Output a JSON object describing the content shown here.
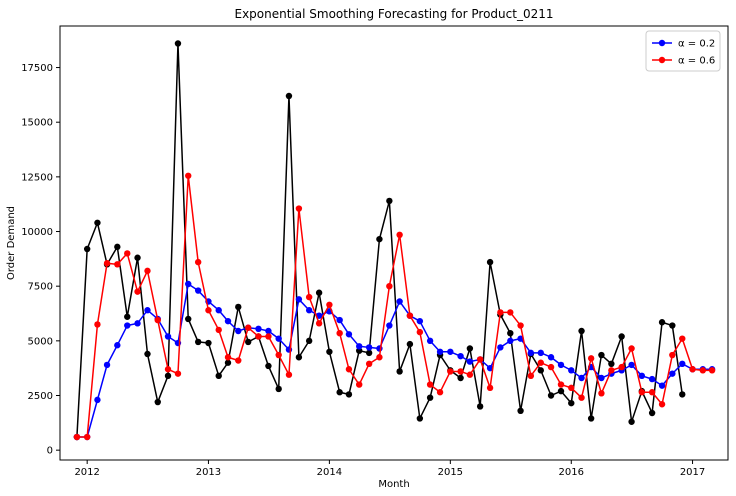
{
  "chart_data": {
    "type": "line",
    "title": "Exponential Smoothing Forecasting for Product_0211",
    "xlabel": "Month",
    "ylabel": "Order Demand",
    "xlim": [
      "2011-10-11",
      "2017-04-18"
    ],
    "ylim": [
      -450,
      19400
    ],
    "x_ticks": [
      {
        "date": "2012-01-01",
        "label": "2012"
      },
      {
        "date": "2013-01-01",
        "label": "2013"
      },
      {
        "date": "2014-01-01",
        "label": "2014"
      },
      {
        "date": "2015-01-01",
        "label": "2015"
      },
      {
        "date": "2016-01-01",
        "label": "2016"
      },
      {
        "date": "2017-01-01",
        "label": "2017"
      }
    ],
    "y_ticks": [
      {
        "value": 0,
        "label": "0"
      },
      {
        "value": 2500,
        "label": "2500"
      },
      {
        "value": 5000,
        "label": "5000"
      },
      {
        "value": 7500,
        "label": "7500"
      },
      {
        "value": 10000,
        "label": "10000"
      },
      {
        "value": 12500,
        "label": "12500"
      },
      {
        "value": 15000,
        "label": "15000"
      },
      {
        "value": 17500,
        "label": "17500"
      }
    ],
    "grid": false,
    "legend_position": "top-right",
    "series": [
      {
        "name": "",
        "color": "#000000",
        "in_legend": false,
        "x": [
          "2011-12-01",
          "2012-01-01",
          "2012-02-01",
          "2012-03-01",
          "2012-04-01",
          "2012-05-01",
          "2012-06-01",
          "2012-07-01",
          "2012-08-01",
          "2012-09-01",
          "2012-10-01",
          "2012-11-01",
          "2012-12-01",
          "2013-01-01",
          "2013-02-01",
          "2013-03-01",
          "2013-04-01",
          "2013-05-01",
          "2013-06-01",
          "2013-07-01",
          "2013-08-01",
          "2013-09-01",
          "2013-10-01",
          "2013-11-01",
          "2013-12-01",
          "2014-01-01",
          "2014-02-01",
          "2014-03-01",
          "2014-04-01",
          "2014-05-01",
          "2014-06-01",
          "2014-07-01",
          "2014-08-01",
          "2014-09-01",
          "2014-10-01",
          "2014-11-01",
          "2014-12-01",
          "2015-01-01",
          "2015-02-01",
          "2015-03-01",
          "2015-04-01",
          "2015-05-01",
          "2015-06-01",
          "2015-07-01",
          "2015-08-01",
          "2015-09-01",
          "2015-10-01",
          "2015-11-01",
          "2015-12-01",
          "2016-01-01",
          "2016-02-01",
          "2016-03-01",
          "2016-04-01",
          "2016-05-01",
          "2016-06-01",
          "2016-07-01",
          "2016-08-01",
          "2016-09-01",
          "2016-10-01",
          "2016-11-01",
          "2016-12-01"
        ],
        "values": [
          600,
          9200,
          10400,
          8500,
          9300,
          6100,
          8800,
          4400,
          2200,
          3400,
          18600,
          6000,
          4950,
          4900,
          3400,
          4000,
          6550,
          4950,
          5200,
          3850,
          2800,
          16200,
          4250,
          5000,
          7200,
          4500,
          2650,
          2550,
          4550,
          4450,
          9650,
          11400,
          3600,
          4850,
          1450,
          2400,
          4350,
          3650,
          3300,
          4650,
          2000,
          8600,
          6200,
          5350,
          1800,
          4400,
          3650,
          2500,
          2700,
          2150,
          5450,
          1450,
          4350,
          3950,
          5200,
          1300,
          2700,
          1700,
          5850,
          5700,
          2550
        ]
      },
      {
        "name": "α = 0.2",
        "color": "#0000ff",
        "in_legend": true,
        "x": [
          "2011-12-01",
          "2012-01-01",
          "2012-02-01",
          "2012-03-01",
          "2012-04-01",
          "2012-05-01",
          "2012-06-01",
          "2012-07-01",
          "2012-08-01",
          "2012-09-01",
          "2012-10-01",
          "2012-11-01",
          "2012-12-01",
          "2013-01-01",
          "2013-02-01",
          "2013-03-01",
          "2013-04-01",
          "2013-05-01",
          "2013-06-01",
          "2013-07-01",
          "2013-08-01",
          "2013-09-01",
          "2013-10-01",
          "2013-11-01",
          "2013-12-01",
          "2014-01-01",
          "2014-02-01",
          "2014-03-01",
          "2014-04-01",
          "2014-05-01",
          "2014-06-01",
          "2014-07-01",
          "2014-08-01",
          "2014-09-01",
          "2014-10-01",
          "2014-11-01",
          "2014-12-01",
          "2015-01-01",
          "2015-02-01",
          "2015-03-01",
          "2015-04-01",
          "2015-05-01",
          "2015-06-01",
          "2015-07-01",
          "2015-08-01",
          "2015-09-01",
          "2015-10-01",
          "2015-11-01",
          "2015-12-01",
          "2016-01-01",
          "2016-02-01",
          "2016-03-01",
          "2016-04-01",
          "2016-05-01",
          "2016-06-01",
          "2016-07-01",
          "2016-08-01",
          "2016-09-01",
          "2016-10-01",
          "2016-11-01",
          "2016-12-01",
          "2017-01-01",
          "2017-02-01",
          "2017-03-01"
        ],
        "values": [
          600,
          600,
          2300,
          3900,
          4800,
          5700,
          5800,
          6400,
          6000,
          5200,
          4900,
          7600,
          7300,
          6800,
          6400,
          5900,
          5450,
          5600,
          5550,
          5450,
          5100,
          4600,
          6900,
          6400,
          6150,
          6350,
          5950,
          5300,
          4750,
          4700,
          4650,
          5700,
          6800,
          6150,
          5900,
          5000,
          4500,
          4500,
          4300,
          4050,
          4150,
          3750,
          4700,
          5000,
          5100,
          4450,
          4450,
          4250,
          3900,
          3650,
          3300,
          3800,
          3300,
          3500,
          3650,
          3900,
          3400,
          3250,
          2950,
          3500,
          3950,
          3700,
          3700,
          3700
        ]
      },
      {
        "name": "α = 0.6",
        "color": "#ff0000",
        "in_legend": true,
        "x": [
          "2011-12-01",
          "2012-01-01",
          "2012-02-01",
          "2012-03-01",
          "2012-04-01",
          "2012-05-01",
          "2012-06-01",
          "2012-07-01",
          "2012-08-01",
          "2012-09-01",
          "2012-10-01",
          "2012-11-01",
          "2012-12-01",
          "2013-01-01",
          "2013-02-01",
          "2013-03-01",
          "2013-04-01",
          "2013-05-01",
          "2013-06-01",
          "2013-07-01",
          "2013-08-01",
          "2013-09-01",
          "2013-10-01",
          "2013-11-01",
          "2013-12-01",
          "2014-01-01",
          "2014-02-01",
          "2014-03-01",
          "2014-04-01",
          "2014-05-01",
          "2014-06-01",
          "2014-07-01",
          "2014-08-01",
          "2014-09-01",
          "2014-10-01",
          "2014-11-01",
          "2014-12-01",
          "2015-01-01",
          "2015-02-01",
          "2015-03-01",
          "2015-04-01",
          "2015-05-01",
          "2015-06-01",
          "2015-07-01",
          "2015-08-01",
          "2015-09-01",
          "2015-10-01",
          "2015-11-01",
          "2015-12-01",
          "2016-01-01",
          "2016-02-01",
          "2016-03-01",
          "2016-04-01",
          "2016-05-01",
          "2016-06-01",
          "2016-07-01",
          "2016-08-01",
          "2016-09-01",
          "2016-10-01",
          "2016-11-01",
          "2016-12-01",
          "2017-01-01",
          "2017-02-01",
          "2017-03-01"
        ],
        "values": [
          600,
          600,
          5750,
          8550,
          8500,
          9000,
          7250,
          8200,
          5950,
          3700,
          3500,
          12550,
          8600,
          6400,
          5500,
          4250,
          4100,
          5600,
          5200,
          5200,
          4350,
          3450,
          11050,
          7000,
          5800,
          6650,
          5350,
          3700,
          3000,
          3950,
          4250,
          7500,
          9850,
          6150,
          5400,
          3000,
          2650,
          3600,
          3600,
          3450,
          4150,
          2850,
          6300,
          6300,
          5700,
          3400,
          4000,
          3800,
          3000,
          2850,
          2400,
          4200,
          2600,
          3650,
          3800,
          4650,
          2650,
          2650,
          2100,
          4350,
          5100,
          3700,
          3650,
          3650
        ]
      }
    ]
  }
}
